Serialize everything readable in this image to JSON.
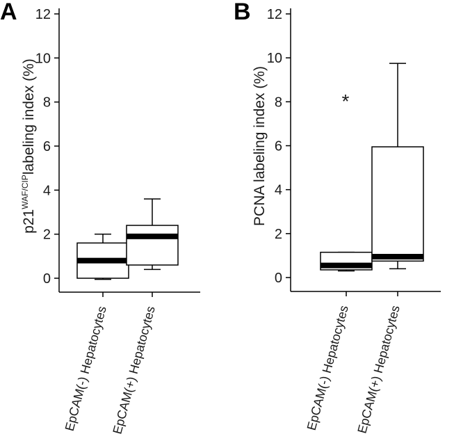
{
  "chart_data": [
    {
      "type": "box",
      "panel_label": "A",
      "ylabel": {
        "main": "p21",
        "superscript": "WAF/CIP",
        "rest": "labeling index (%)"
      },
      "ylim": [
        0,
        12
      ],
      "yticks": [
        0,
        2,
        4,
        6,
        8,
        10,
        12
      ],
      "categories": [
        "EpCAM(-) Hepatocytes",
        "EpCAM(+) Hepatocytes"
      ],
      "boxes": [
        {
          "min": -0.05,
          "q1": 0.0,
          "median": 0.8,
          "q3": 1.6,
          "max": 2.0
        },
        {
          "min": 0.4,
          "q1": 0.6,
          "median": 1.9,
          "q3": 2.4,
          "max": 3.6
        }
      ],
      "annotation": ""
    },
    {
      "type": "box",
      "panel_label": "B",
      "ylabel": {
        "main": "PCNA labeling index (%)",
        "superscript": "",
        "rest": ""
      },
      "ylim": [
        0,
        12
      ],
      "yticks": [
        0,
        2,
        4,
        6,
        8,
        10,
        12
      ],
      "categories": [
        "EpCAM(-) Hepatocytes",
        "EpCAM(+) Hepatocytes"
      ],
      "boxes": [
        {
          "min": 0.3,
          "q1": 0.35,
          "median": 0.55,
          "q3": 1.15,
          "max": 1.15
        },
        {
          "min": 0.4,
          "q1": 0.75,
          "median": 0.95,
          "q3": 5.95,
          "max": 9.75
        }
      ],
      "annotation": "*"
    }
  ]
}
